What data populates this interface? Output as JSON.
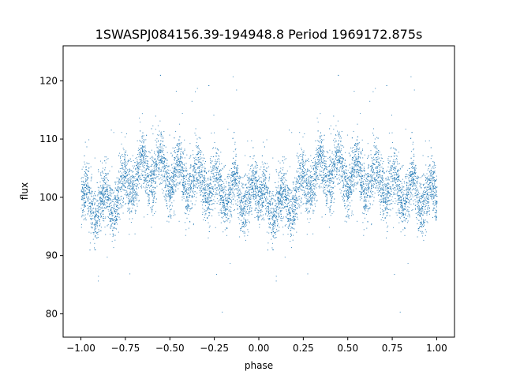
{
  "chart_data": {
    "type": "scatter",
    "title": "1SWASPJ084156.39-194948.8 Period 1969172.875s",
    "xlabel": "phase",
    "ylabel": "flux",
    "xlim": [
      -1.1,
      1.1
    ],
    "ylim": [
      76,
      126
    ],
    "xticks": [
      -1.0,
      -0.75,
      -0.5,
      -0.25,
      0.0,
      0.25,
      0.5,
      0.75,
      1.0
    ],
    "xtick_labels": [
      "−1.00",
      "−0.75",
      "−0.50",
      "−0.25",
      "0.00",
      "0.25",
      "0.50",
      "0.75",
      "1.00"
    ],
    "yticks": [
      80,
      90,
      100,
      110,
      120
    ],
    "ytick_labels": [
      "80",
      "90",
      "100",
      "110",
      "120"
    ],
    "grid": false,
    "marker_color": "#1f77b4",
    "series": [
      {
        "x_range": [
          -1.0,
          1.0
        ],
        "mean_curve": {
          "phase": [
            0.0,
            0.05,
            0.1,
            0.15,
            0.2,
            0.25,
            0.3,
            0.35,
            0.4,
            0.45,
            0.5,
            0.55,
            0.6,
            0.65,
            0.7,
            0.75,
            0.8,
            0.85,
            0.9,
            0.95,
            1.0
          ],
          "flux": [
            99.5,
            99.0,
            98.5,
            99.0,
            100.5,
            102.0,
            103.5,
            104.5,
            105.0,
            104.5,
            104.0,
            103.5,
            103.0,
            103.0,
            102.5,
            102.0,
            101.5,
            101.0,
            100.5,
            100.0,
            99.5
          ]
        },
        "scatter_std": 4.0,
        "point_count": 9000
      }
    ]
  }
}
